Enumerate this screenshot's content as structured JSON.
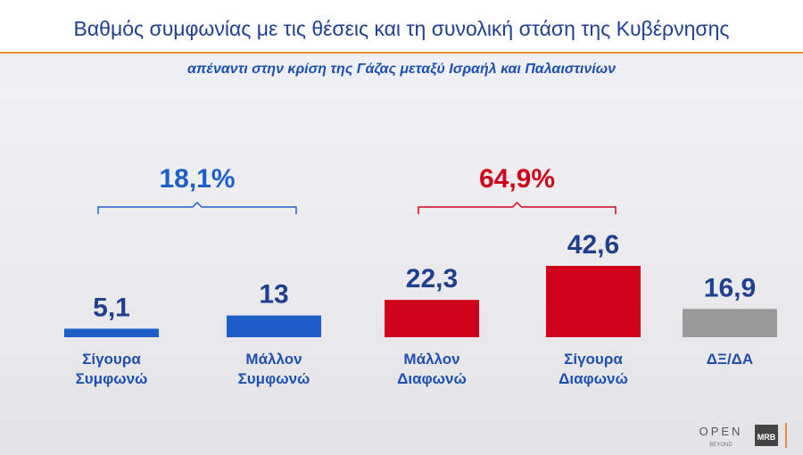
{
  "chart_data": {
    "type": "bar",
    "title": "Βαθμός συμφωνίας με τις θέσεις και τη συνολική στάση της Κυβέρνησης",
    "subtitle": "απέναντι στην κρίση της Γάζας μεταξύ Ισραήλ και Παλαιστινίων",
    "categories": [
      "Σίγουρα Συμφωνώ",
      "Μάλλον Συμφωνώ",
      "Μάλλον Διαφωνώ",
      "Σίγουρα Διαφωνώ",
      "ΔΞ/ΔΑ"
    ],
    "values": [
      5.1,
      13,
      22.3,
      42.6,
      16.9
    ],
    "value_labels": [
      "5,1",
      "13",
      "22,3",
      "42,6",
      "16,9"
    ],
    "colors": [
      "#1e5ec8",
      "#1e5ec8",
      "#d0021b",
      "#d0021b",
      "#9a9a9a"
    ],
    "groups": [
      {
        "label": "18,1%",
        "value": 18.1,
        "from": 0,
        "to": 1,
        "color": "#1e5ec8"
      },
      {
        "label": "64,9%",
        "value": 64.9,
        "from": 2,
        "to": 3,
        "color": "#d0021b"
      }
    ],
    "logos": [
      "OPEN",
      "BEYOND",
      "MRB"
    ]
  }
}
